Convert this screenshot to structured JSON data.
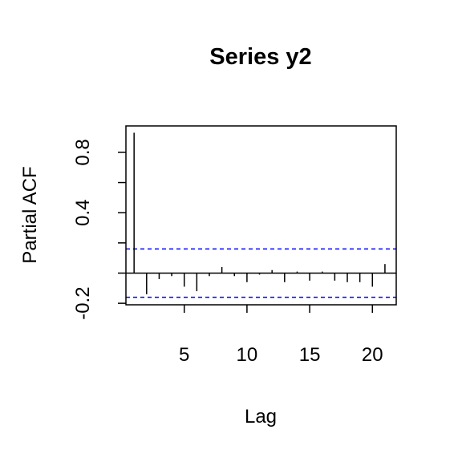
{
  "chart_data": {
    "type": "bar",
    "title": "Series  y2",
    "xlabel": "Lag",
    "ylabel": "Partial ACF",
    "xlim": [
      0.35,
      21.9
    ],
    "ylim": [
      -0.21,
      0.975
    ],
    "x_ticks": [
      5,
      10,
      15,
      20
    ],
    "y_ticks": [
      -0.2,
      0.4,
      0.8
    ],
    "y_ticks_unlabeled": [
      0.0,
      0.2,
      0.6
    ],
    "confidence_limit": 0.16,
    "ci_color": "#0000ff",
    "lags": [
      1,
      2,
      3,
      4,
      5,
      6,
      7,
      8,
      9,
      10,
      11,
      12,
      13,
      14,
      15,
      16,
      17,
      18,
      19,
      20,
      21
    ],
    "values": [
      0.93,
      -0.14,
      -0.04,
      -0.02,
      -0.09,
      -0.12,
      -0.02,
      0.04,
      -0.02,
      -0.06,
      -0.01,
      0.02,
      -0.06,
      0.01,
      -0.05,
      0.01,
      -0.05,
      -0.06,
      -0.06,
      -0.09,
      0.06
    ],
    "grid": false
  }
}
